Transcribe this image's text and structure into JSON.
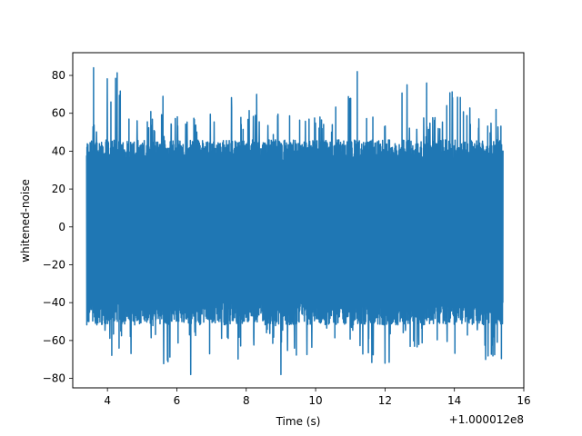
{
  "chart_data": {
    "type": "line",
    "title": "",
    "xlabel": "Time (s)",
    "ylabel": "whitened-noise",
    "x_offset_label": "+1.000012e8",
    "xlim": [
      3.0,
      16.0
    ],
    "ylim": [
      -85,
      92
    ],
    "x_ticks": [
      4,
      6,
      8,
      10,
      12,
      14,
      16
    ],
    "y_ticks": [
      -80,
      -60,
      -40,
      -20,
      0,
      20,
      40,
      60,
      80
    ],
    "x_tick_labels": [
      "4",
      "6",
      "8",
      "10",
      "12",
      "14",
      "16"
    ],
    "y_tick_labels": [
      "−80",
      "−60",
      "−40",
      "−20",
      "0",
      "20",
      "40",
      "60",
      "80"
    ],
    "grid": false,
    "series": [
      {
        "color": "#1f77b4",
        "x_range": [
          3.4,
          15.4
        ],
        "envelope_max": [
          58,
          84,
          65,
          62,
          59,
          60,
          69,
          70,
          63,
          60,
          62,
          58,
          61,
          70,
          62,
          62,
          82,
          59,
          62,
          76,
          64,
          62
        ],
        "envelope_min": [
          -62,
          -68,
          -70,
          -60,
          -74,
          -58,
          -78,
          -62,
          -70,
          -62,
          -68,
          -77,
          -60,
          -62,
          -68,
          -78,
          -60,
          -65,
          -60,
          -68,
          -62,
          -70
        ],
        "bulk_min_level": -45,
        "bulk_max_level": 40,
        "note_values": [
          {
            "x": 3.6,
            "y": 84
          },
          {
            "x": 4.1,
            "y": 66
          },
          {
            "x": 5.6,
            "y": 69
          },
          {
            "x": 6.4,
            "y": -78
          },
          {
            "x": 8.3,
            "y": 70
          },
          {
            "x": 9.0,
            "y": -78
          },
          {
            "x": 11.2,
            "y": 82
          },
          {
            "x": 12.0,
            "y": -72
          },
          {
            "x": 13.2,
            "y": 76
          },
          {
            "x": 14.9,
            "y": -70
          },
          {
            "x": 15.2,
            "y": 62
          }
        ]
      }
    ]
  }
}
